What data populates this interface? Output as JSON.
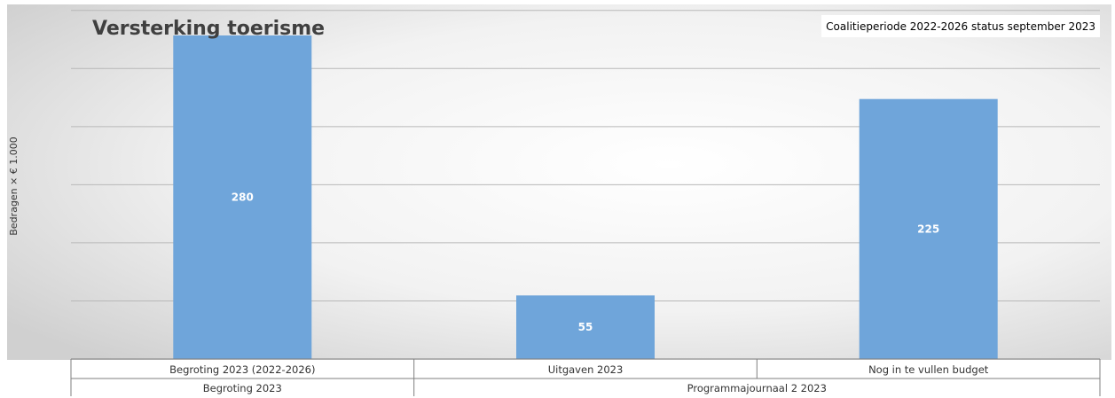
{
  "chart_data": {
    "type": "bar",
    "title": "Versterking toerisme",
    "note": "Coalitieperiode 2022-2026 status september 2023",
    "ylabel": "Bedragen × € 1.000",
    "xlabel": "",
    "ylim": [
      0,
      280
    ],
    "grid": true,
    "categories": [
      "Begroting 2023 (2022-2026)",
      "Uitgaven 2023",
      "Nog in te vullen budget"
    ],
    "values": [
      280,
      55,
      225
    ],
    "data_labels": [
      "280",
      "55",
      "225"
    ],
    "groups": [
      {
        "label": "Begroting 2023",
        "categories": [
          "Begroting 2023 (2022-2026)"
        ]
      },
      {
        "label": "Programmajournaal 2 2023",
        "categories": [
          "Uitgaven 2023",
          "Nog in te vullen budget"
        ]
      }
    ],
    "bar_color": "#6fa5da"
  }
}
